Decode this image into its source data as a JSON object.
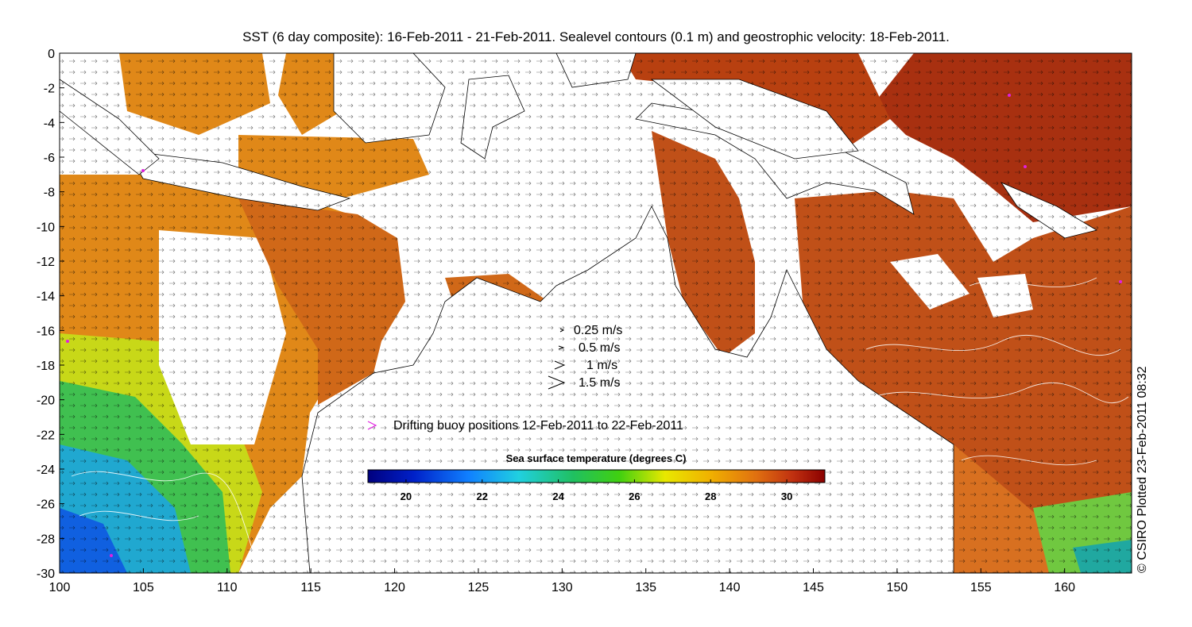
{
  "title": "SST (6 day composite): 16-Feb-2011 - 21-Feb-2011. Sealevel contours (0.1 m) and geostrophic velocity: 18-Feb-2011.",
  "credit": "© CSIRO Plotted 23-Feb-2011 08:32",
  "map": {
    "lon_range": [
      100,
      164
    ],
    "lat_range": [
      -30,
      0
    ],
    "x_ticks": [
      "100",
      "105",
      "110",
      "115",
      "120",
      "125",
      "130",
      "135",
      "140",
      "145",
      "150",
      "155",
      "160"
    ],
    "y_ticks": [
      "0",
      "-2",
      "-4",
      "-6",
      "-8",
      "-10",
      "-12",
      "-14",
      "-16",
      "-18",
      "-20",
      "-22",
      "-24",
      "-26",
      "-28",
      "-30"
    ]
  },
  "velocity_legend": [
    "0.25 m/s",
    "0.5 m/s",
    "1 m/s",
    "1.5 m/s"
  ],
  "buoy_legend": "Drifting buoy positions 12-Feb-2011 to 22-Feb-2011",
  "colorbar": {
    "title": "Sea surface temperature (degrees C)",
    "range": [
      19,
      31
    ],
    "ticks": [
      "20",
      "22",
      "24",
      "26",
      "28",
      "30"
    ]
  },
  "colors": {
    "land": "#ffffff",
    "warm": "#c0501a",
    "buoy": "#e020e0"
  }
}
